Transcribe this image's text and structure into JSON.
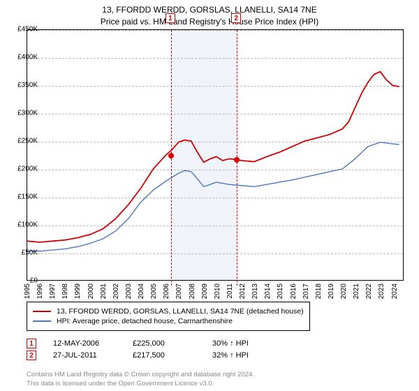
{
  "title_line1": "13, FFORDD WERDD, GORSLAS, LLANELLI, SA14 7NE",
  "title_line2": "Price paid vs. HM Land Registry's House Price Index (HPI)",
  "chart": {
    "type": "line",
    "background_color": "#ffffff",
    "grid_color": "#bbbbbb",
    "ylim": [
      0,
      450000
    ],
    "ytick_step": 50000,
    "y_ticks": [
      "£0",
      "£50K",
      "£100K",
      "£150K",
      "£200K",
      "£250K",
      "£300K",
      "£350K",
      "£400K",
      "£450K"
    ],
    "x_years": [
      "1995",
      "1996",
      "1997",
      "1998",
      "1999",
      "2000",
      "2001",
      "2002",
      "2003",
      "2004",
      "2005",
      "2006",
      "2007",
      "2008",
      "2009",
      "2010",
      "2011",
      "2012",
      "2013",
      "2014",
      "2015",
      "2016",
      "2017",
      "2018",
      "2019",
      "2020",
      "2021",
      "2022",
      "2023",
      "2024"
    ],
    "shaded_band": {
      "x_start": 2006.36,
      "x_end": 2011.57,
      "color": "#f0f4fa"
    },
    "markers": [
      {
        "label": "1",
        "x": 2006.36,
        "y": 225000
      },
      {
        "label": "2",
        "x": 2011.57,
        "y": 217500
      }
    ],
    "series": [
      {
        "name": "property",
        "color": "#d00000",
        "width": 1.8,
        "points": [
          [
            1995,
            70000
          ],
          [
            1996,
            68000
          ],
          [
            1997,
            70000
          ],
          [
            1998,
            72000
          ],
          [
            1999,
            76000
          ],
          [
            2000,
            82000
          ],
          [
            2001,
            92000
          ],
          [
            2002,
            110000
          ],
          [
            2003,
            135000
          ],
          [
            2004,
            165000
          ],
          [
            2005,
            200000
          ],
          [
            2006,
            225000
          ],
          [
            2006.5,
            235000
          ],
          [
            2007,
            248000
          ],
          [
            2007.5,
            252000
          ],
          [
            2008,
            250000
          ],
          [
            2008.5,
            230000
          ],
          [
            2009,
            212000
          ],
          [
            2009.5,
            218000
          ],
          [
            2010,
            222000
          ],
          [
            2010.5,
            215000
          ],
          [
            2011,
            218000
          ],
          [
            2011.5,
            217500
          ],
          [
            2012,
            215000
          ],
          [
            2013,
            213000
          ],
          [
            2014,
            222000
          ],
          [
            2015,
            230000
          ],
          [
            2016,
            240000
          ],
          [
            2017,
            250000
          ],
          [
            2018,
            256000
          ],
          [
            2019,
            262000
          ],
          [
            2020,
            272000
          ],
          [
            2020.5,
            285000
          ],
          [
            2021,
            310000
          ],
          [
            2021.5,
            335000
          ],
          [
            2022,
            355000
          ],
          [
            2022.5,
            370000
          ],
          [
            2023,
            375000
          ],
          [
            2023.5,
            360000
          ],
          [
            2024,
            350000
          ],
          [
            2024.5,
            348000
          ]
        ]
      },
      {
        "name": "hpi",
        "color": "#4a78c0",
        "width": 1.4,
        "points": [
          [
            1995,
            52000
          ],
          [
            1996,
            52000
          ],
          [
            1997,
            54000
          ],
          [
            1998,
            56000
          ],
          [
            1999,
            60000
          ],
          [
            2000,
            66000
          ],
          [
            2001,
            74000
          ],
          [
            2002,
            88000
          ],
          [
            2003,
            110000
          ],
          [
            2004,
            140000
          ],
          [
            2005,
            162000
          ],
          [
            2006,
            178000
          ],
          [
            2007,
            192000
          ],
          [
            2007.5,
            197000
          ],
          [
            2008,
            195000
          ],
          [
            2008.5,
            182000
          ],
          [
            2009,
            168000
          ],
          [
            2009.5,
            172000
          ],
          [
            2010,
            176000
          ],
          [
            2011,
            172000
          ],
          [
            2012,
            170000
          ],
          [
            2013,
            168000
          ],
          [
            2014,
            172000
          ],
          [
            2015,
            176000
          ],
          [
            2016,
            180000
          ],
          [
            2017,
            185000
          ],
          [
            2018,
            190000
          ],
          [
            2019,
            195000
          ],
          [
            2020,
            200000
          ],
          [
            2021,
            218000
          ],
          [
            2022,
            240000
          ],
          [
            2023,
            248000
          ],
          [
            2024,
            245000
          ],
          [
            2024.5,
            244000
          ]
        ]
      }
    ]
  },
  "legend": {
    "items": [
      {
        "color": "#d00000",
        "label": "13, FFORDD WERDD, GORSLAS, LLANELLI, SA14 7NE (detached house)"
      },
      {
        "color": "#4a78c0",
        "label": "HPI: Average price, detached house, Carmarthenshire"
      }
    ]
  },
  "sales": [
    {
      "num": "1",
      "date": "12-MAY-2006",
      "price": "£225,000",
      "delta": "30% ↑ HPI"
    },
    {
      "num": "2",
      "date": "27-JUL-2011",
      "price": "£217,500",
      "delta": "32% ↑ HPI"
    }
  ],
  "footer_line1": "Contains HM Land Registry data © Crown copyright and database right 2024.",
  "footer_line2": "This data is licensed under the Open Government Licence v3.0."
}
